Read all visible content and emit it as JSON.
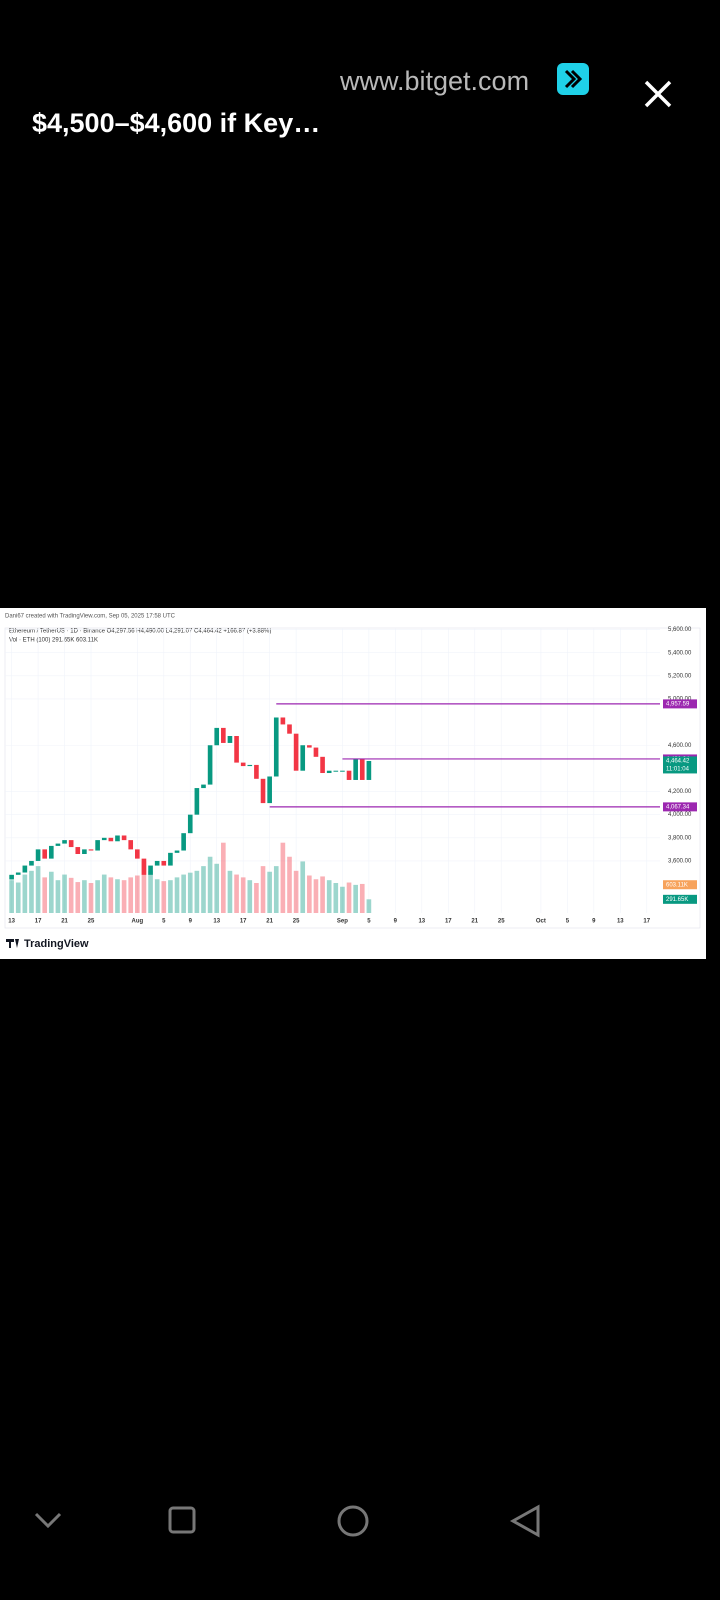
{
  "header": {
    "site": "www.bitget.com",
    "title": "$4,500–$4,600 if Key…"
  },
  "chart": {
    "type": "candlestick",
    "credit": "Dani67 created with TradingView.com, Sep 05, 2025 17:58 UTC",
    "symbol_line": "Ethereum / TetherUS · 1D · Binance  O4,297.56 H4,490.00 L4,291.07 C4,464.42 +166.87 (+3.88%)",
    "volume_line": "Vol · ETH (100)  291.65K  603.11K",
    "brand": "TradingView",
    "open": [
      3440,
      3480,
      3500,
      3560,
      3600,
      3700,
      3620,
      3730,
      3750,
      3780,
      3720,
      3660,
      3700,
      3690,
      3780,
      3800,
      3770,
      3820,
      3780,
      3700,
      3620,
      3480,
      3560,
      3600,
      3560,
      3670,
      3690,
      3840,
      4000,
      4230,
      4260,
      4600,
      4750,
      4620,
      4680,
      4450,
      4420,
      4430,
      4310,
      4100,
      4330,
      4840,
      4780,
      4700,
      4380,
      4600,
      4580,
      4500,
      4360,
      4380,
      4380,
      4380,
      4300,
      4480,
      4300
    ],
    "close": [
      3480,
      3500,
      3560,
      3600,
      3700,
      3620,
      3730,
      3750,
      3780,
      3720,
      3660,
      3700,
      3690,
      3780,
      3800,
      3770,
      3820,
      3780,
      3700,
      3620,
      3480,
      3560,
      3600,
      3560,
      3670,
      3690,
      3840,
      4000,
      4230,
      4260,
      4600,
      4750,
      4620,
      4680,
      4450,
      4420,
      4430,
      4310,
      4100,
      4330,
      4840,
      4780,
      4700,
      4380,
      4600,
      4580,
      4500,
      4360,
      4380,
      4380,
      4380,
      4300,
      4480,
      4300,
      4464
    ],
    "volume": [
      700,
      650,
      820,
      900,
      1000,
      760,
      880,
      700,
      820,
      750,
      660,
      700,
      640,
      700,
      820,
      760,
      720,
      700,
      760,
      800,
      1100,
      900,
      720,
      680,
      700,
      760,
      820,
      860,
      900,
      1000,
      1200,
      1050,
      1500,
      900,
      820,
      760,
      700,
      640,
      1000,
      880,
      1000,
      1500,
      1200,
      900,
      1100,
      800,
      720,
      780,
      700,
      640,
      560,
      650,
      600,
      620,
      292
    ],
    "volume_lim": [
      0,
      1600
    ],
    "ylim": [
      5700,
      3150
    ],
    "yticks": [
      {
        "value": 5600,
        "label": "5,600.00"
      },
      {
        "value": 5400,
        "label": "5,400.00"
      },
      {
        "value": 5200,
        "label": "5,200.00"
      },
      {
        "value": 5000,
        "label": "5,000.00"
      },
      {
        "value": 4600,
        "label": "4,600.00"
      },
      {
        "value": 4200,
        "label": "4,200.00"
      },
      {
        "value": 4000,
        "label": "4,000.00"
      },
      {
        "value": 3800,
        "label": "3,800.00"
      },
      {
        "value": 3600,
        "label": "3,600.00"
      }
    ],
    "xlim": [
      -1,
      98
    ],
    "xticks": [
      {
        "value": 0,
        "label": "13"
      },
      {
        "value": 4,
        "label": "17"
      },
      {
        "value": 8,
        "label": "21"
      },
      {
        "value": 12,
        "label": "25"
      },
      {
        "value": 19,
        "label": "Aug"
      },
      {
        "value": 23,
        "label": "5"
      },
      {
        "value": 27,
        "label": "9"
      },
      {
        "value": 31,
        "label": "13"
      },
      {
        "value": 35,
        "label": "17"
      },
      {
        "value": 39,
        "label": "21"
      },
      {
        "value": 43,
        "label": "25"
      },
      {
        "value": 50,
        "label": "Sep"
      },
      {
        "value": 54,
        "label": "5"
      },
      {
        "value": 58,
        "label": "9"
      },
      {
        "value": 62,
        "label": "13"
      },
      {
        "value": 66,
        "label": "17"
      },
      {
        "value": 70,
        "label": "21"
      },
      {
        "value": 74,
        "label": "25"
      },
      {
        "value": 80,
        "label": "Oct"
      },
      {
        "value": 84,
        "label": "5"
      },
      {
        "value": 88,
        "label": "9"
      },
      {
        "value": 92,
        "label": "13"
      },
      {
        "value": 96,
        "label": "17"
      }
    ],
    "levels": [
      {
        "value": 4957.59,
        "label": "4,957.59",
        "from": 40
      },
      {
        "value": 4481.64,
        "label": "4,481.64",
        "from": 50
      },
      {
        "value": 4067.34,
        "label": "4,067.34",
        "from": 39
      }
    ],
    "last_price": {
      "value": 4464.42,
      "label": "4,464.42",
      "timer": "11:01:04"
    },
    "volume_tags": [
      {
        "value": 603.11,
        "label": "603.11K"
      },
      {
        "value": 291.65,
        "label": "291.65K"
      }
    ],
    "up_color": "#089981",
    "down_color": "#f23645",
    "level_color": "#9c27b0",
    "grid": true
  }
}
